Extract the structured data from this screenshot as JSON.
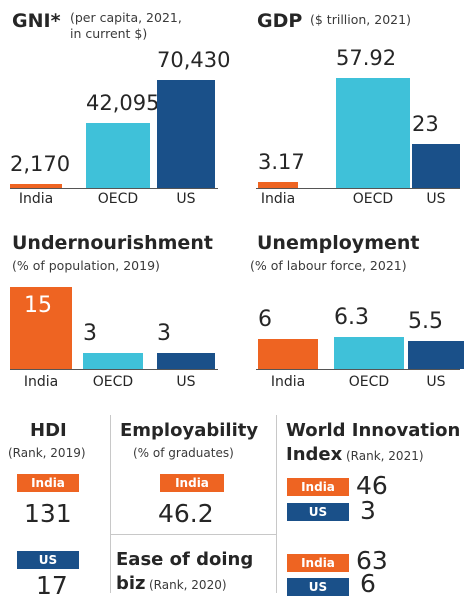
{
  "colors": {
    "india": "#ee6422",
    "oecd": "#3fc1d9",
    "us": "#1a5089"
  },
  "chart_data": [
    {
      "type": "bar",
      "title": "GNI*",
      "subtitle_line1": "(per capita, 2021,",
      "subtitle_line2": "in current $)",
      "categories": [
        "India",
        "OECD",
        "US"
      ],
      "values": [
        2170,
        42095,
        70430
      ],
      "value_labels": [
        "2,170",
        "42,095",
        "70,430"
      ]
    },
    {
      "type": "bar",
      "title": "GDP",
      "subtitle": "($ trillion, 2021)",
      "categories": [
        "India",
        "OECD",
        "US"
      ],
      "values": [
        3.17,
        57.92,
        23
      ],
      "value_labels": [
        "3.17",
        "57.92",
        "23"
      ]
    },
    {
      "type": "bar",
      "title": "Undernourishment",
      "subtitle": "(% of population, 2019)",
      "categories": [
        "India",
        "OECD",
        "US"
      ],
      "values": [
        15,
        3,
        3
      ],
      "value_labels": [
        "15",
        "3",
        "3"
      ]
    },
    {
      "type": "bar",
      "title": "Unemployment",
      "subtitle": "(% of labour force, 2021)",
      "categories": [
        "India",
        "OECD",
        "US"
      ],
      "values": [
        6,
        6.3,
        5.5
      ],
      "value_labels": [
        "6",
        "6.3",
        "5.5"
      ]
    }
  ],
  "hdi": {
    "title": "HDI",
    "subtitle": "(Rank, 2019)",
    "india_label": "India",
    "india_value": "131",
    "us_label": "US",
    "us_value": "17"
  },
  "employability": {
    "title": "Employability",
    "subtitle": "(% of graduates)",
    "india_label": "India",
    "india_value": "46.2"
  },
  "innovation": {
    "title_line1": "World Innovation",
    "title_line2": "Index",
    "subtitle": "(Rank, 2021)",
    "india_label": "India",
    "india_value": "46",
    "us_label": "US",
    "us_value": "3"
  },
  "ease": {
    "title_line1": "Ease of doing",
    "title_line2": "biz",
    "subtitle": "(Rank, 2020)",
    "india_label": "India",
    "india_value": "63",
    "us_label": "US",
    "us_value": "6"
  }
}
